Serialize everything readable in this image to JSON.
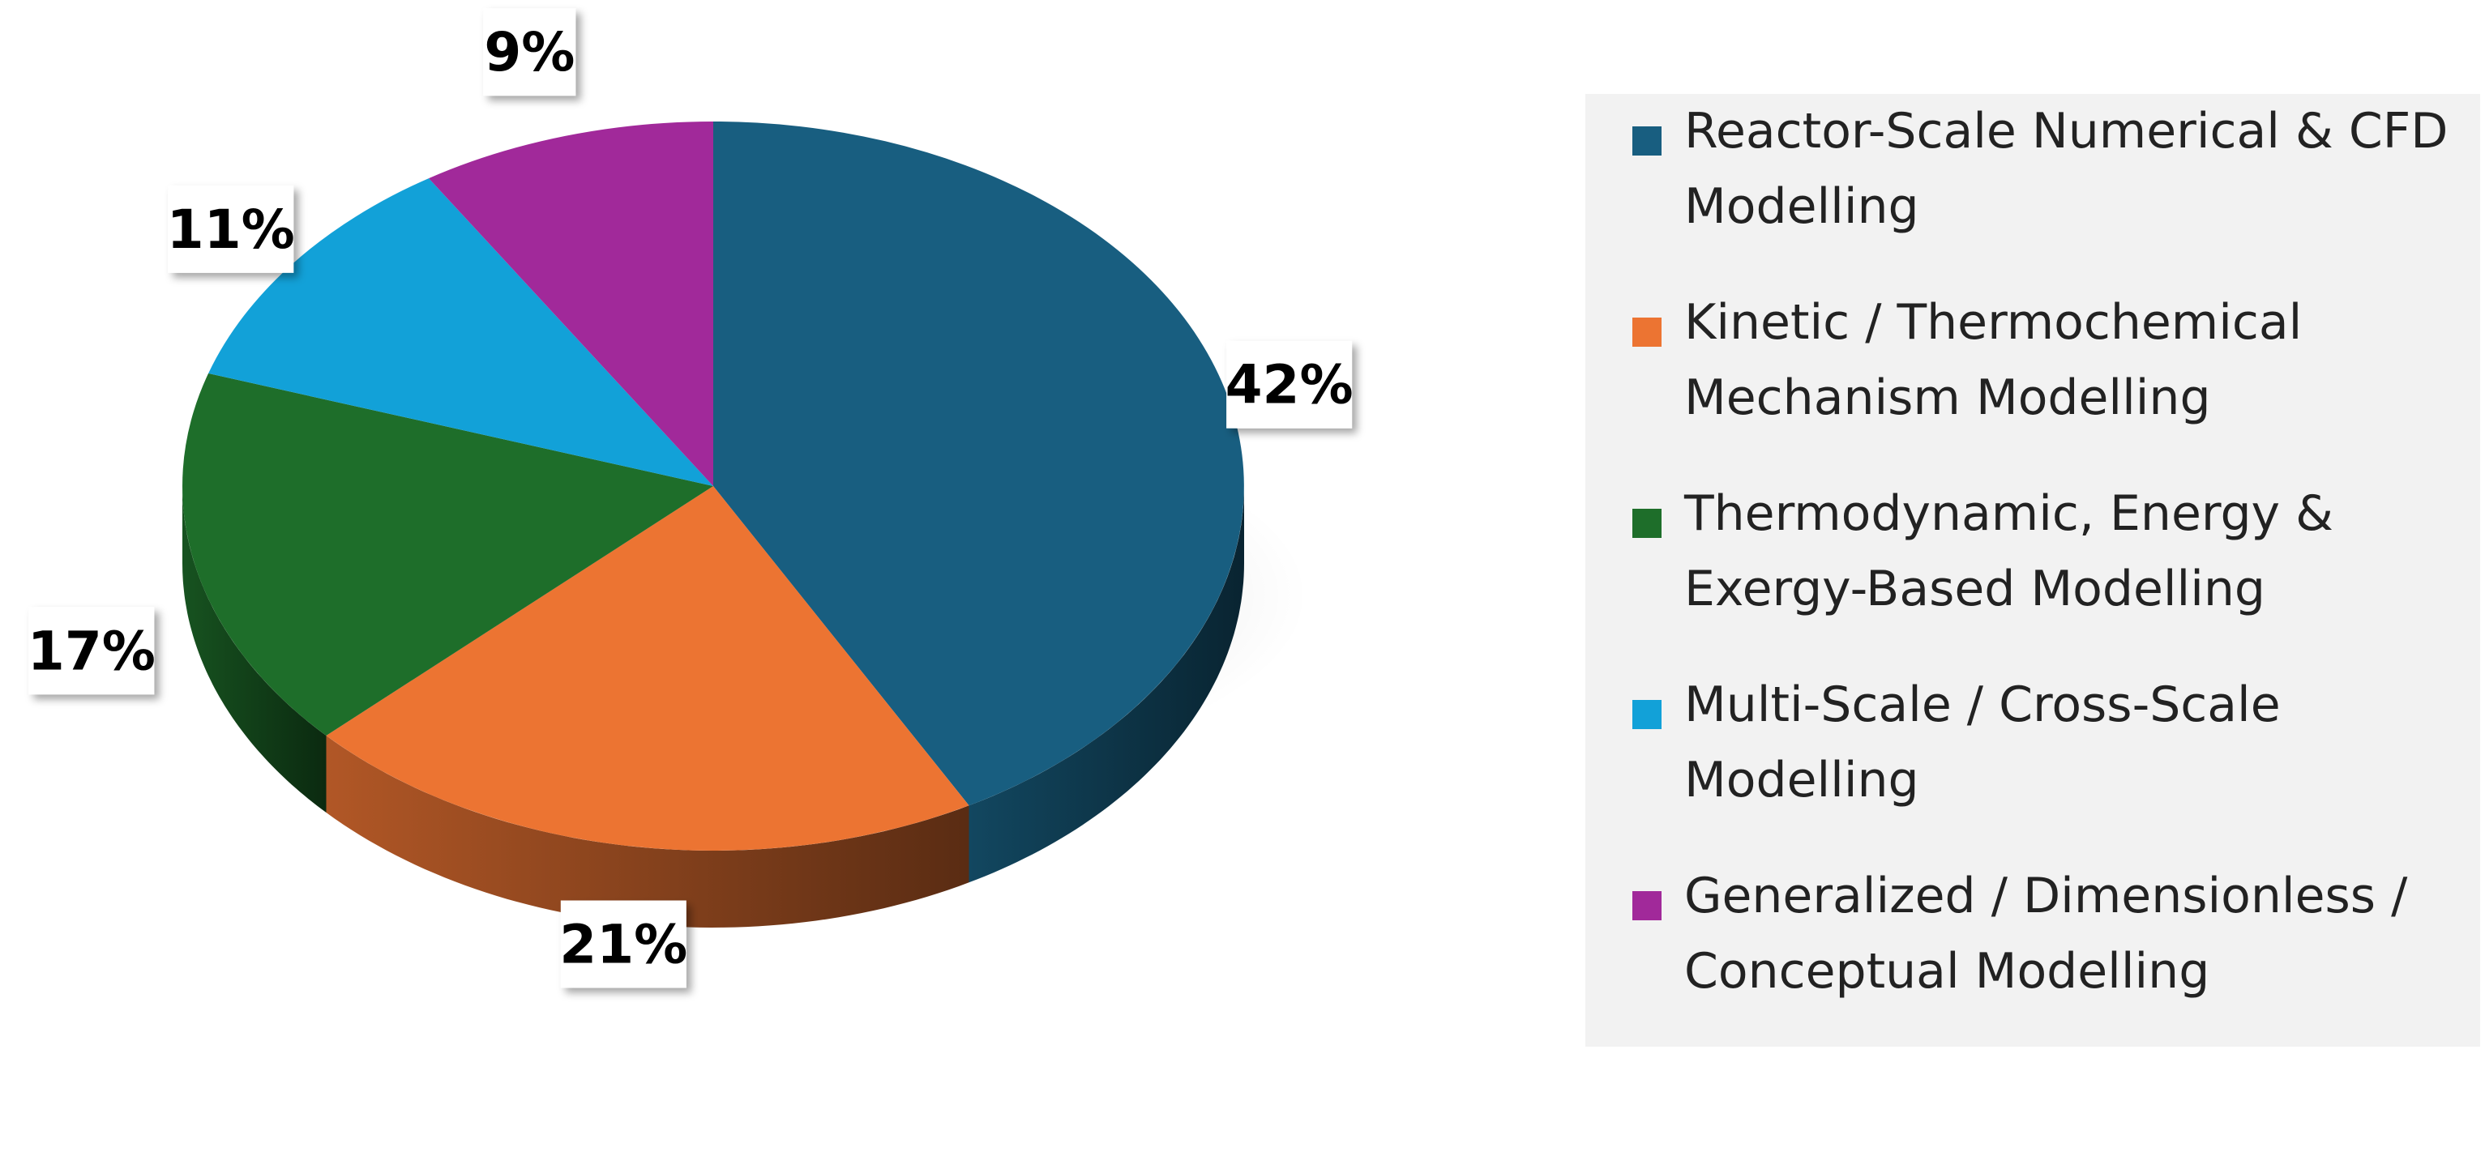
{
  "chart_data": {
    "type": "pie",
    "style": "3d",
    "title": "",
    "categories": [
      "Reactor-Scale Numerical & CFD Modelling",
      "Kinetic / Thermochemical Mechanism Modelling",
      "Thermodynamic, Energy & Exergy-Based Modelling",
      "Multi-Scale / Cross-Scale Modelling",
      "Generalized / Dimensionless / Conceptual Modelling"
    ],
    "values": [
      42,
      21,
      17,
      11,
      9
    ],
    "labels": [
      "42%",
      "21%",
      "17%",
      "11%",
      "9%"
    ],
    "colors": [
      "#185e80",
      "#ec7432",
      "#1e6e2a",
      "#12a1d8",
      "#a1299a"
    ],
    "legend_position": "right",
    "data_labels": "outside, boxed"
  }
}
